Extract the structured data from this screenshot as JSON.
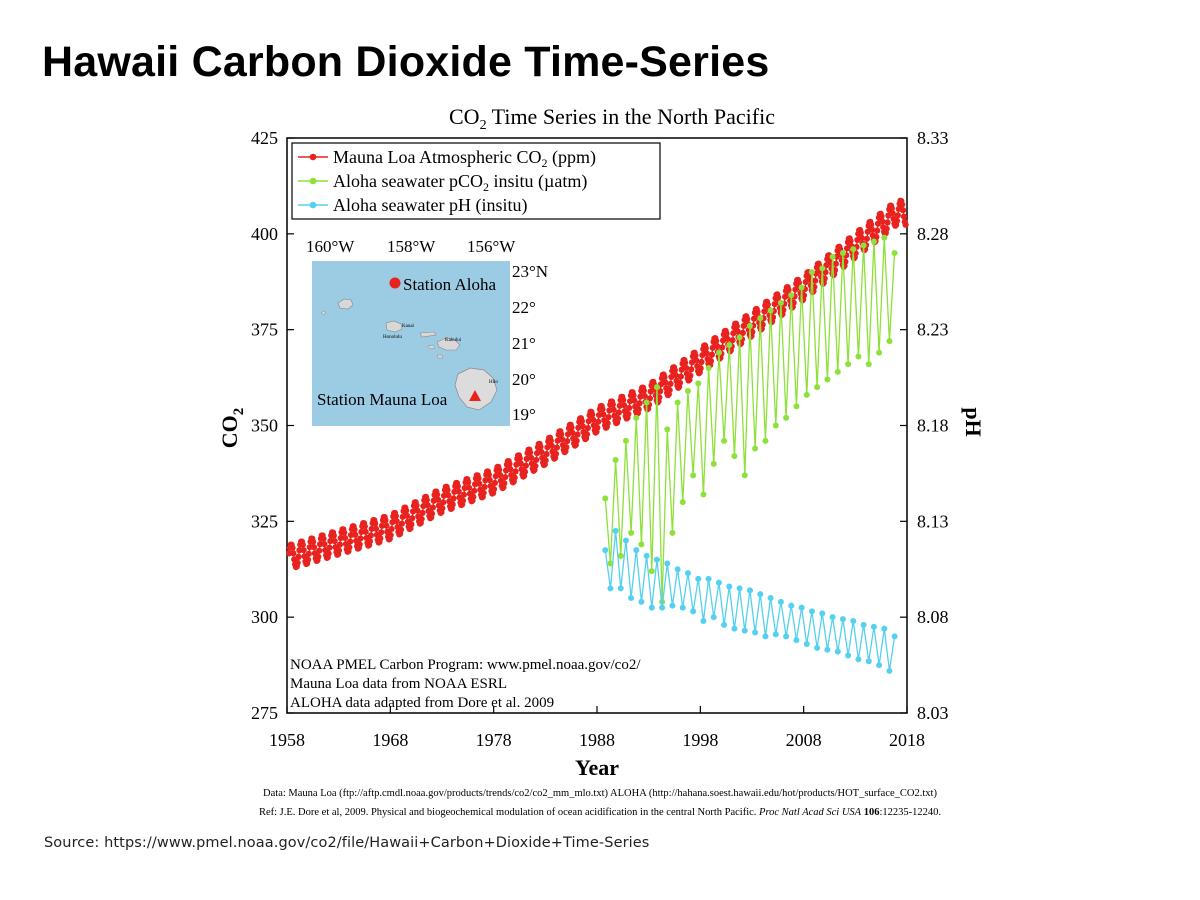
{
  "slide": {
    "title": "Hawaii Carbon Dioxide Time-Series",
    "source": "Source: https://www.pmel.noaa.gov/co2/file/Hawaii+Carbon+Dioxide+Time-Series"
  },
  "footer": {
    "data_line": "Data: Mauna Loa (ftp://aftp.cmdl.noaa.gov/products/trends/co2/co2_mm_mlo.txt)  ALOHA (http://hahana.soest.hawaii.edu/hot/products/HOT_surface_CO2.txt)",
    "ref_prefix": "Ref: J.E. Dore et al, 2009. Physical and biogeochemical modulation of ocean acidification in the central North Pacific. ",
    "ref_journal": "Proc Natl Acad Sci USA",
    "ref_volume": "106",
    "ref_pages": ":12235-12240."
  },
  "chart_data": {
    "type": "line",
    "title_pre": "CO",
    "title_sub": "2",
    "title_post": " Time Series in the North Pacific",
    "xlabel": "Year",
    "ylabel_left_pre": "CO",
    "ylabel_left_sub": "2",
    "ylabel_right": "pH",
    "xlim": [
      1958,
      2018
    ],
    "ylim_left": [
      275,
      425
    ],
    "ylim_right": [
      8.03,
      8.33
    ],
    "x_ticks": [
      1958,
      1968,
      1978,
      1988,
      1998,
      2008,
      2018
    ],
    "y_left_ticks": [
      275,
      300,
      325,
      350,
      375,
      400,
      425
    ],
    "y_right_ticks": [
      "8.03",
      "8.08",
      "8.13",
      "8.18",
      "8.23",
      "8.28",
      "8.33"
    ],
    "legend_position": "top-left",
    "legend": [
      {
        "pre": "Mauna Loa Atmospheric CO",
        "sub": "2",
        "post": " (ppm)",
        "color": "#e8231f"
      },
      {
        "pre": "Aloha seawater pCO",
        "sub": "2",
        "post": " insitu (µatm)",
        "color": "#8ee03a"
      },
      {
        "pre": "Aloha seawater pH (insitu)",
        "sub": "",
        "post": "",
        "color": "#55d0f0"
      }
    ],
    "series": [
      {
        "axis": "left",
        "color": "#e8231f",
        "x": [
          1958,
          1963,
          1968,
          1973,
          1978,
          1983,
          1988,
          1993,
          1998,
          2003,
          2008,
          2013,
          2017
        ],
        "y": [
          315.5,
          319.5,
          323.5,
          330.5,
          335.5,
          343.0,
          351.5,
          357.5,
          367.0,
          376.5,
          386.0,
          397.0,
          405.5
        ],
        "seasonal_amplitude": 3.2
      },
      {
        "axis": "left",
        "color": "#8ee03a",
        "x": [
          1988.8,
          1989.3,
          1989.8,
          1990.3,
          1990.8,
          1991.3,
          1991.8,
          1992.3,
          1992.8,
          1993.3,
          1993.8,
          1994.3,
          1994.8,
          1995.3,
          1995.8,
          1996.3,
          1996.8,
          1997.3,
          1997.8,
          1998.3,
          1998.8,
          1999.3,
          1999.8,
          2000.3,
          2000.8,
          2001.3,
          2001.8,
          2002.3,
          2002.8,
          2003.3,
          2003.8,
          2004.3,
          2004.8,
          2005.3,
          2005.8,
          2006.3,
          2006.8,
          2007.3,
          2007.8,
          2008.3,
          2008.8,
          2009.3,
          2009.8,
          2010.3,
          2010.8,
          2011.3,
          2011.8,
          2012.3,
          2012.8,
          2013.3,
          2013.8,
          2014.3,
          2014.8,
          2015.3,
          2015.8,
          2016.3,
          2016.8
        ],
        "y": [
          331,
          314,
          341,
          316,
          346,
          322,
          352,
          319,
          356,
          312,
          360,
          304,
          349,
          322,
          356,
          330,
          359,
          337,
          361,
          332,
          365,
          340,
          369,
          346,
          371,
          342,
          373,
          337,
          376,
          344,
          378,
          346,
          380,
          350,
          382,
          352,
          384,
          355,
          386,
          358,
          390,
          360,
          391,
          362,
          394,
          364,
          395,
          366,
          396,
          368,
          397,
          366,
          398,
          369,
          399,
          372,
          395
        ]
      },
      {
        "axis": "right",
        "color": "#55d0f0",
        "x": [
          1988.8,
          1989.3,
          1989.8,
          1990.3,
          1990.8,
          1991.3,
          1991.8,
          1992.3,
          1992.8,
          1993.3,
          1993.8,
          1994.3,
          1994.8,
          1995.3,
          1995.8,
          1996.3,
          1996.8,
          1997.3,
          1997.8,
          1998.3,
          1998.8,
          1999.3,
          1999.8,
          2000.3,
          2000.8,
          2001.3,
          2001.8,
          2002.3,
          2002.8,
          2003.3,
          2003.8,
          2004.3,
          2004.8,
          2005.3,
          2005.8,
          2006.3,
          2006.8,
          2007.3,
          2007.8,
          2008.3,
          2008.8,
          2009.3,
          2009.8,
          2010.3,
          2010.8,
          2011.3,
          2011.8,
          2012.3,
          2012.8,
          2013.3,
          2013.8,
          2014.3,
          2014.8,
          2015.3,
          2015.8,
          2016.3,
          2016.8
        ],
        "y": [
          8.115,
          8.095,
          8.125,
          8.095,
          8.12,
          8.09,
          8.115,
          8.088,
          8.112,
          8.085,
          8.11,
          8.085,
          8.108,
          8.086,
          8.105,
          8.085,
          8.103,
          8.083,
          8.1,
          8.078,
          8.1,
          8.08,
          8.098,
          8.076,
          8.096,
          8.074,
          8.095,
          8.073,
          8.094,
          8.072,
          8.092,
          8.07,
          8.09,
          8.071,
          8.088,
          8.07,
          8.086,
          8.068,
          8.085,
          8.066,
          8.083,
          8.064,
          8.082,
          8.063,
          8.08,
          8.062,
          8.079,
          8.06,
          8.078,
          8.058,
          8.076,
          8.057,
          8.075,
          8.055,
          8.074,
          8.052,
          8.07
        ]
      }
    ],
    "notes": [
      "NOAA PMEL Carbon Program: www.pmel.noaa.gov/co2/",
      "Mauna Loa data from NOAA ESRL",
      "ALOHA data adapted from Dore et al. 2009"
    ],
    "inset_map": {
      "background": "#9ccbe4",
      "lon_labels": [
        "160°W",
        "158°W",
        "156°W"
      ],
      "lat_labels": [
        "23°N",
        "22°",
        "21°",
        "20°",
        "19°"
      ],
      "station_aloha": "Station Aloha",
      "station_mauna_loa": "Station Mauna Loa",
      "island_labels": [
        "Kauai",
        "Honolulu",
        "Kahului",
        "Hilo"
      ]
    }
  }
}
